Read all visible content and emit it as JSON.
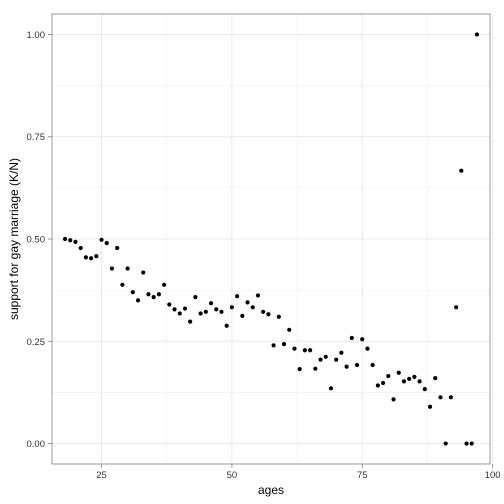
{
  "chart_data": {
    "type": "scatter",
    "xlabel": "ages",
    "ylabel": "support for gay marriage (K/N)",
    "xlim": [
      15.5,
      99.5
    ],
    "ylim": [
      -0.05,
      1.05
    ],
    "x_ticks": [
      25,
      50,
      75,
      100
    ],
    "x_tick_labels": [
      "25",
      "50",
      "75",
      "100"
    ],
    "y_ticks": [
      0,
      0.25,
      0.5,
      0.75,
      1.0
    ],
    "y_tick_labels": [
      "0.00",
      "0.25",
      "0.50",
      "0.75",
      "1.00"
    ],
    "grid": true,
    "colors": {
      "point": "#000000",
      "grid": "#ebebeb",
      "panel_border": "#7f7f7f"
    },
    "points": [
      {
        "x": 18,
        "y": 0.5
      },
      {
        "x": 19,
        "y": 0.497
      },
      {
        "x": 20,
        "y": 0.493
      },
      {
        "x": 21,
        "y": 0.478
      },
      {
        "x": 22,
        "y": 0.455
      },
      {
        "x": 23,
        "y": 0.453
      },
      {
        "x": 24,
        "y": 0.458
      },
      {
        "x": 25,
        "y": 0.498
      },
      {
        "x": 26,
        "y": 0.49
      },
      {
        "x": 27,
        "y": 0.428
      },
      {
        "x": 28,
        "y": 0.478
      },
      {
        "x": 29,
        "y": 0.388
      },
      {
        "x": 30,
        "y": 0.428
      },
      {
        "x": 31,
        "y": 0.37
      },
      {
        "x": 32,
        "y": 0.35
      },
      {
        "x": 33,
        "y": 0.418
      },
      {
        "x": 34,
        "y": 0.365
      },
      {
        "x": 35,
        "y": 0.358
      },
      {
        "x": 36,
        "y": 0.365
      },
      {
        "x": 37,
        "y": 0.388
      },
      {
        "x": 38,
        "y": 0.34
      },
      {
        "x": 39,
        "y": 0.328
      },
      {
        "x": 40,
        "y": 0.318
      },
      {
        "x": 41,
        "y": 0.33
      },
      {
        "x": 42,
        "y": 0.298
      },
      {
        "x": 43,
        "y": 0.358
      },
      {
        "x": 44,
        "y": 0.318
      },
      {
        "x": 45,
        "y": 0.322
      },
      {
        "x": 46,
        "y": 0.343
      },
      {
        "x": 47,
        "y": 0.328
      },
      {
        "x": 48,
        "y": 0.322
      },
      {
        "x": 49,
        "y": 0.288
      },
      {
        "x": 50,
        "y": 0.333
      },
      {
        "x": 51,
        "y": 0.36
      },
      {
        "x": 52,
        "y": 0.312
      },
      {
        "x": 53,
        "y": 0.345
      },
      {
        "x": 54,
        "y": 0.333
      },
      {
        "x": 55,
        "y": 0.362
      },
      {
        "x": 56,
        "y": 0.322
      },
      {
        "x": 57,
        "y": 0.316
      },
      {
        "x": 58,
        "y": 0.24
      },
      {
        "x": 59,
        "y": 0.31
      },
      {
        "x": 60,
        "y": 0.243
      },
      {
        "x": 61,
        "y": 0.278
      },
      {
        "x": 62,
        "y": 0.232
      },
      {
        "x": 63,
        "y": 0.182
      },
      {
        "x": 64,
        "y": 0.228
      },
      {
        "x": 65,
        "y": 0.228
      },
      {
        "x": 66,
        "y": 0.183
      },
      {
        "x": 67,
        "y": 0.205
      },
      {
        "x": 68,
        "y": 0.212
      },
      {
        "x": 69,
        "y": 0.135
      },
      {
        "x": 70,
        "y": 0.205
      },
      {
        "x": 71,
        "y": 0.222
      },
      {
        "x": 72,
        "y": 0.188
      },
      {
        "x": 73,
        "y": 0.258
      },
      {
        "x": 74,
        "y": 0.192
      },
      {
        "x": 75,
        "y": 0.255
      },
      {
        "x": 76,
        "y": 0.232
      },
      {
        "x": 77,
        "y": 0.192
      },
      {
        "x": 78,
        "y": 0.142
      },
      {
        "x": 79,
        "y": 0.148
      },
      {
        "x": 80,
        "y": 0.165
      },
      {
        "x": 81,
        "y": 0.108
      },
      {
        "x": 82,
        "y": 0.173
      },
      {
        "x": 83,
        "y": 0.152
      },
      {
        "x": 84,
        "y": 0.158
      },
      {
        "x": 85,
        "y": 0.163
      },
      {
        "x": 86,
        "y": 0.152
      },
      {
        "x": 87,
        "y": 0.133
      },
      {
        "x": 88,
        "y": 0.09
      },
      {
        "x": 89,
        "y": 0.16
      },
      {
        "x": 90,
        "y": 0.113
      },
      {
        "x": 91,
        "y": 0.0
      },
      {
        "x": 92,
        "y": 0.113
      },
      {
        "x": 93,
        "y": 0.333
      },
      {
        "x": 94,
        "y": 0.667
      },
      {
        "x": 95,
        "y": 0.0
      },
      {
        "x": 96,
        "y": 0.0
      },
      {
        "x": 97,
        "y": 1.0
      }
    ]
  }
}
